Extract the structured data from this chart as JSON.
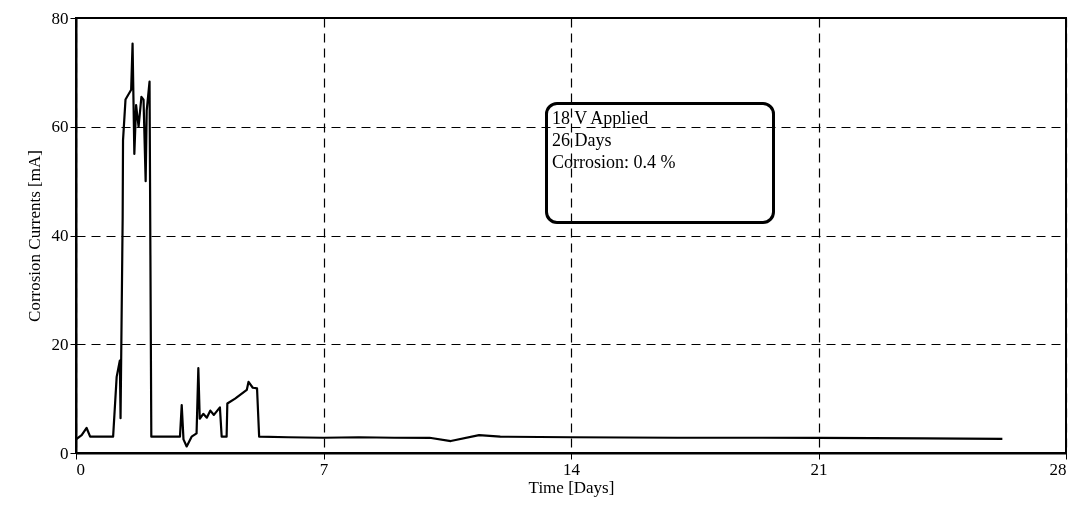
{
  "chart_data": {
    "type": "line",
    "xlabel": "Time [Days]",
    "ylabel": "Corrosion Currents [mA]",
    "xlim": [
      0,
      28
    ],
    "xticks": [
      0,
      7,
      14,
      21,
      28
    ],
    "ylim": [
      0,
      80
    ],
    "yticks": [
      0,
      20,
      40,
      60,
      80
    ],
    "grid": true,
    "marker": "none",
    "line_style": "solid",
    "annotations": [
      "18 V Applied",
      "26 Days",
      "Corrosion: 0.4 %"
    ],
    "series": [
      {
        "color": "#000000",
        "x": [
          0,
          0.16,
          0.3,
          0.4,
          1.05,
          1.15,
          1.24,
          1.26,
          1.32,
          1.33,
          1.4,
          1.56,
          1.6,
          1.65,
          1.7,
          1.77,
          1.85,
          1.91,
          1.97,
          2.0,
          2.08,
          2.13,
          2.5,
          2.94,
          2.99,
          3.04,
          3.13,
          3.27,
          3.41,
          3.46,
          3.5,
          3.6,
          3.7,
          3.8,
          3.9,
          4.07,
          4.12,
          4.26,
          4.28,
          4.5,
          4.83,
          4.88,
          5.0,
          5.12,
          5.18,
          6,
          7,
          8,
          9,
          10,
          10.6,
          11.4,
          12,
          14,
          17,
          21,
          24,
          26.2
        ],
        "values": [
          2.5,
          3.3,
          4.6,
          3.0,
          3.0,
          14,
          17,
          6.4,
          43.4,
          57.5,
          65,
          66.8,
          75.3,
          55,
          64,
          60,
          65.5,
          65,
          50,
          63,
          68.3,
          3.0,
          3.0,
          3.0,
          8.8,
          2.5,
          1.2,
          3.0,
          3.6,
          15.6,
          6.3,
          7.2,
          6.5,
          7.8,
          7.0,
          8.4,
          3.0,
          3.0,
          9.1,
          10,
          11.6,
          13.1,
          12,
          11.9,
          3.0,
          2.9,
          2.8,
          2.9,
          2.8,
          2.8,
          2.2,
          3.3,
          3.0,
          2.9,
          2.8,
          2.8,
          2.7,
          2.6
        ]
      }
    ]
  }
}
